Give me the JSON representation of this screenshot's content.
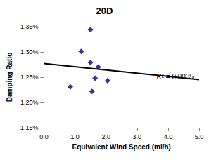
{
  "chart_data": {
    "type": "scatter",
    "title": "20D",
    "x_label": "Equivalent Wind Speed (mi/h)",
    "y_label": "Damping Ratio",
    "x": [
      0.85,
      1.2,
      1.5,
      1.5,
      1.55,
      1.65,
      1.75,
      2.05
    ],
    "values": [
      1.231,
      1.301,
      1.344,
      1.279,
      1.222,
      1.248,
      1.27,
      1.243
    ],
    "color": "#000080",
    "marker": "diamond",
    "trendline": {
      "x": [
        0,
        5
      ],
      "values": [
        1.277,
        1.245
      ],
      "color": "#000000",
      "line_style": "solid"
    },
    "annotations": [
      "R² = 0.0035"
    ],
    "xlim": [
      0,
      5
    ],
    "xticks": [
      {
        "value": 0,
        "label": "0.0"
      },
      {
        "value": 1,
        "label": "1.0"
      },
      {
        "value": 2,
        "label": "2.0"
      },
      {
        "value": 3,
        "label": "3.0"
      },
      {
        "value": 4,
        "label": "4.0"
      },
      {
        "value": 5,
        "label": "5.0"
      }
    ],
    "ylim": [
      1.15,
      1.35
    ],
    "yticks": [
      {
        "value": 1.15,
        "label": "1.15%"
      },
      {
        "value": 1.2,
        "label": "1.20%"
      },
      {
        "value": 1.25,
        "label": "1.25%"
      },
      {
        "value": 1.3,
        "label": "1.30%"
      },
      {
        "value": 1.35,
        "label": "1.35%"
      }
    ],
    "grid": false
  }
}
